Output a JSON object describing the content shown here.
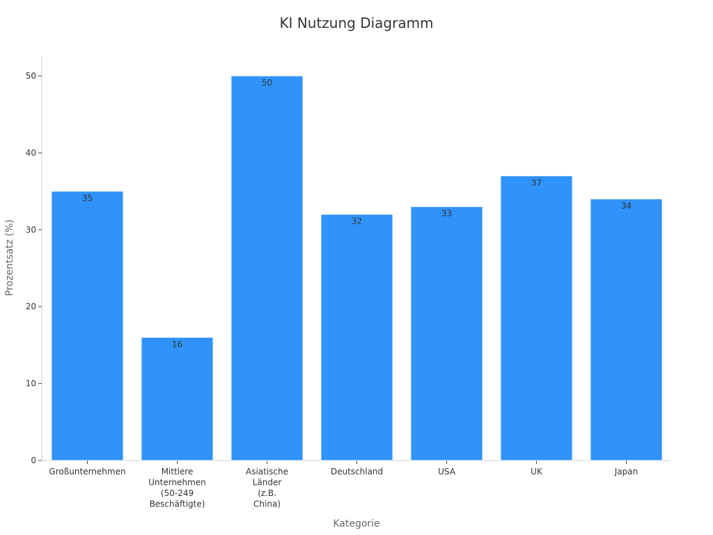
{
  "chart_data": {
    "type": "bar",
    "title": "KI Nutzung Diagramm",
    "xlabel": "Kategorie",
    "ylabel": "Prozentsatz (%)",
    "categories": [
      [
        "Großunternehmen"
      ],
      [
        "Mittlere",
        "Unternehmen",
        "(50-249",
        "Beschäftigte)"
      ],
      [
        "Asiatische",
        "Länder",
        "(z.B.",
        "China)"
      ],
      [
        "Deutschland"
      ],
      [
        "USA"
      ],
      [
        "UK"
      ],
      [
        "Japan"
      ]
    ],
    "values": [
      35,
      16,
      50,
      32,
      33,
      37,
      34
    ],
    "ylim": [
      0,
      52.5
    ],
    "yticks": [
      0,
      10,
      20,
      30,
      40,
      50
    ],
    "grid": false,
    "legend": "none",
    "colors": {
      "bar": "#2f93fa",
      "bar_edge": "#e9f2fd",
      "axis": "#cccccc",
      "text": "#333333",
      "label_text": "#666666"
    }
  }
}
